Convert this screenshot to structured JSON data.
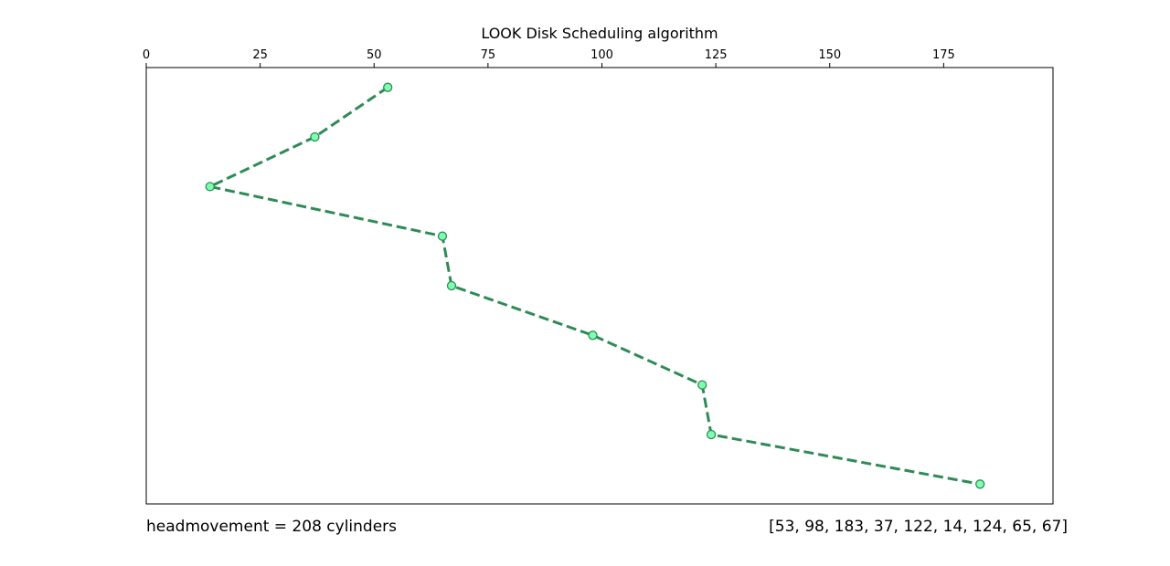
{
  "chart_data": {
    "type": "line",
    "title": "LOOK Disk Scheduling algorithm",
    "xlabel": "",
    "ylabel": "",
    "x_axis_position": "top",
    "xlim": [
      0,
      199
    ],
    "xticks": [
      0,
      25,
      50,
      75,
      100,
      125,
      150,
      175
    ],
    "y_axis_visible": false,
    "grid": false,
    "series": [
      {
        "x": [
          53,
          37,
          14,
          65,
          67,
          98,
          122,
          124,
          183
        ],
        "y": [
          0,
          1,
          2,
          3,
          4,
          5,
          6,
          7,
          8
        ]
      }
    ],
    "line_color": "#2e8b57",
    "line_style": "dashed",
    "marker_face_color": "#7fffb0",
    "marker_edge_color": "#2e8b57"
  },
  "footer": {
    "head_movement": "headmovement = 208 cylinders",
    "request_queue": "[53, 98, 183, 37, 122, 14, 124, 65, 67]"
  }
}
